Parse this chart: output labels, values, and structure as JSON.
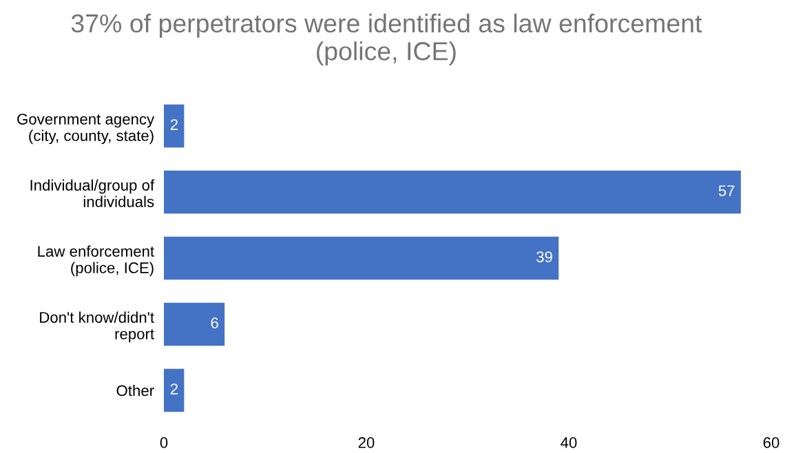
{
  "chart_data": {
    "type": "bar",
    "orientation": "horizontal",
    "title": "37% of perpetrators were identified as law enforcement\n(police, ICE)",
    "categories": [
      "Government agency\n(city, county, state)",
      "Individual/group of\nindividuals",
      "Law enforcement\n(police, ICE)",
      "Don't know/didn't\nreport",
      "Other"
    ],
    "values": [
      2,
      57,
      39,
      6,
      2
    ],
    "color": "#4472c4",
    "xlim": [
      0,
      60
    ],
    "xticks": [
      0,
      20,
      40,
      60
    ],
    "grid": false,
    "data_labels": true
  }
}
